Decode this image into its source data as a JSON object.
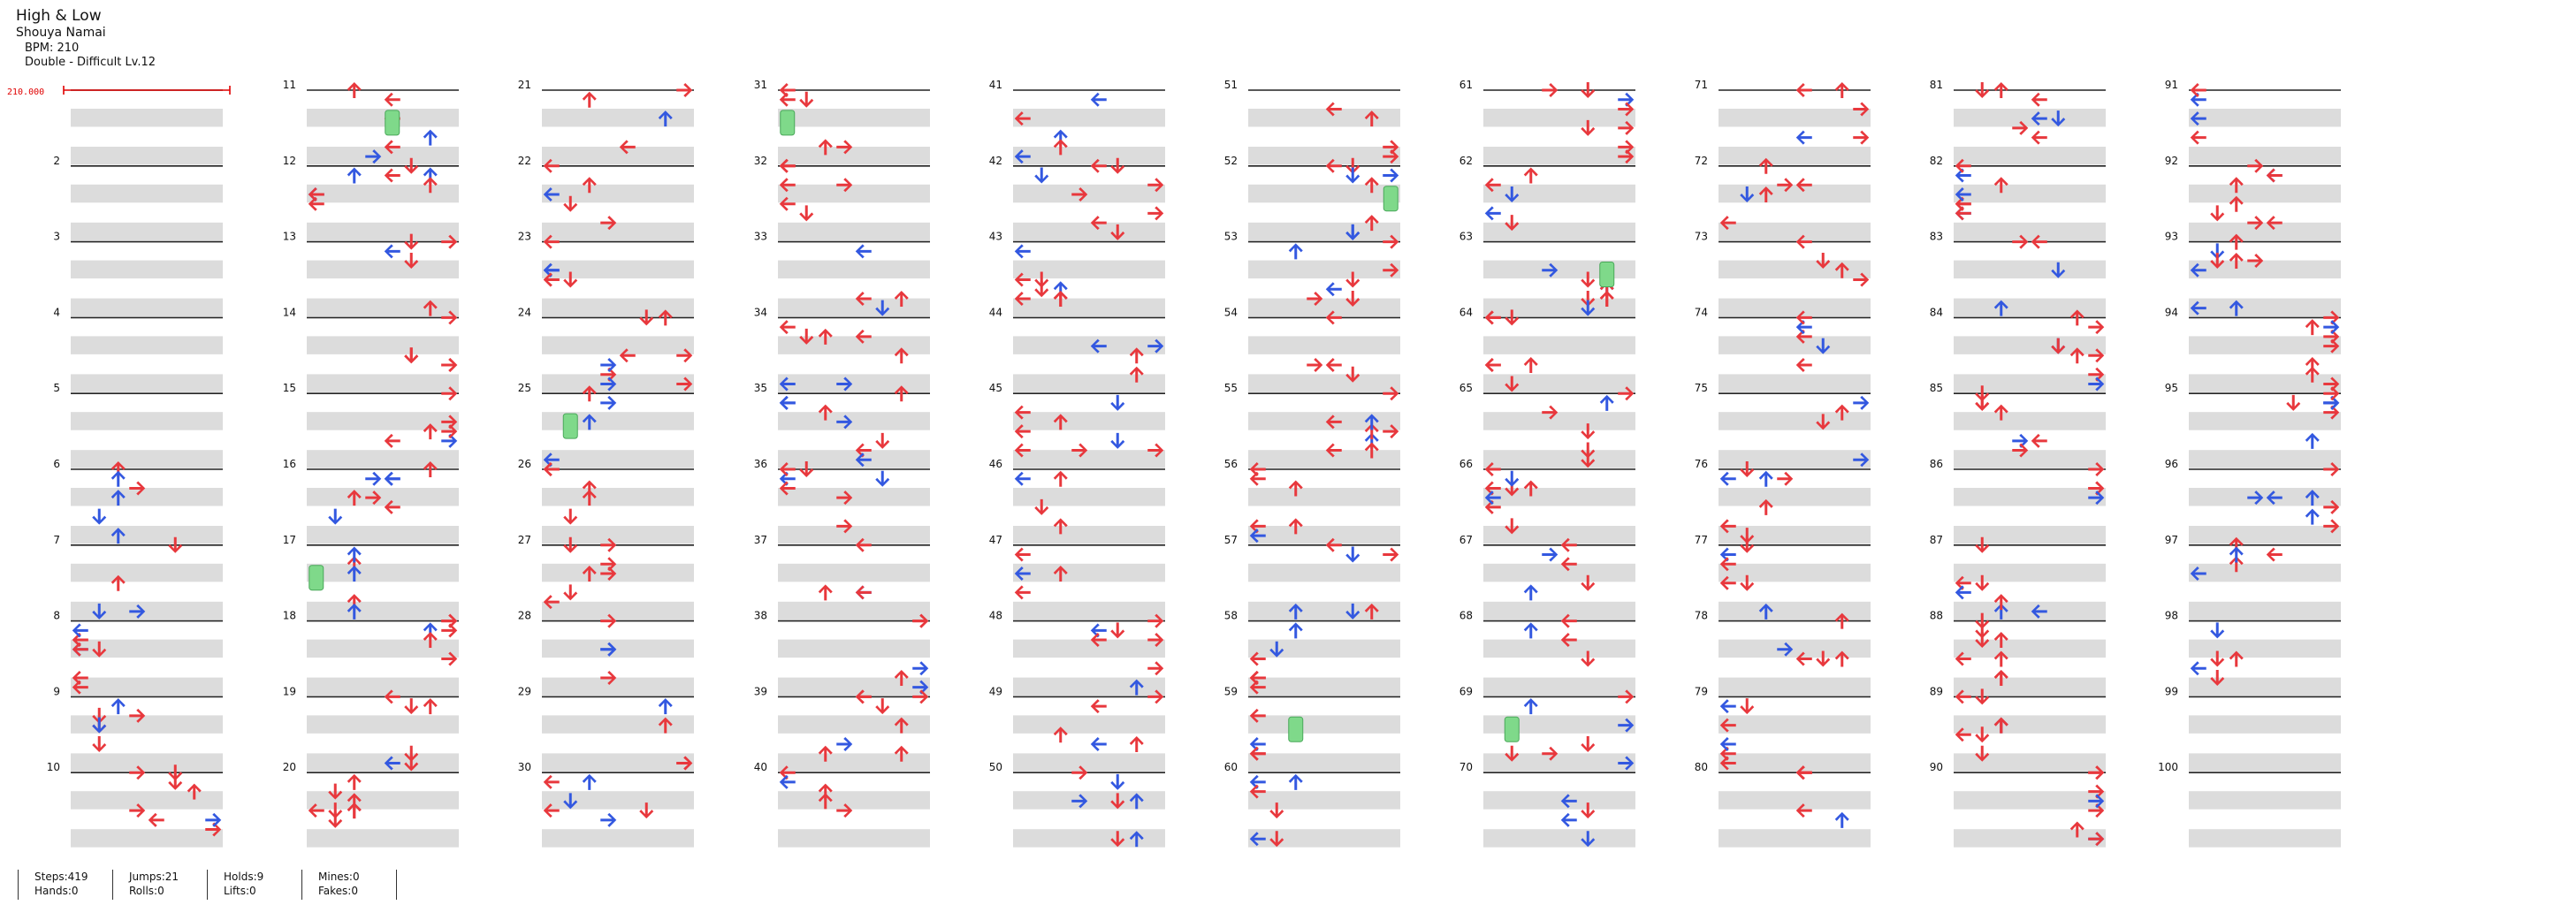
{
  "header": {
    "title": "High & Low",
    "artist": "Shouya Namai",
    "bpm_label": "BPM: 210",
    "difficulty_label": "Double - Difficult  Lv.12"
  },
  "chart": {
    "bpm_marker": "210.000",
    "measure_numbers": [
      "2",
      "3",
      "4",
      "5",
      "6",
      "7",
      "8",
      "9",
      "10",
      "11",
      "12",
      "13",
      "14",
      "15",
      "16",
      "17",
      "18",
      "19",
      "20",
      "21",
      "22",
      "23",
      "24",
      "25",
      "26",
      "27",
      "28",
      "29",
      "30",
      "31",
      "32",
      "33",
      "34",
      "35",
      "36",
      "37",
      "38",
      "39",
      "40",
      "41",
      "42",
      "43",
      "44",
      "45",
      "46",
      "47",
      "48",
      "49",
      "50",
      "51",
      "52",
      "53",
      "54",
      "55",
      "56",
      "57",
      "58",
      "59",
      "60",
      "61",
      "62",
      "63",
      "64",
      "65",
      "66",
      "67",
      "68",
      "69",
      "70",
      "71",
      "72",
      "73",
      "74",
      "75",
      "76",
      "77",
      "78",
      "79",
      "80",
      "81",
      "82",
      "83",
      "84",
      "85",
      "86",
      "87",
      "88",
      "89",
      "90",
      "91",
      "92",
      "93",
      "94",
      "95",
      "96",
      "97",
      "98",
      "99",
      "100"
    ],
    "colors": {
      "quarter": "#e8383d",
      "eighth": "#3358e0",
      "hold": "#7fd98a",
      "band": "#dcdcdc",
      "line": "#222222",
      "marker": "#e00000"
    },
    "notes_shown": "approximate arrow placement per column"
  },
  "stats": [
    {
      "line1": "Steps:419",
      "line2": "Hands:0"
    },
    {
      "line1": "Jumps:21",
      "line2": "Rolls:0"
    },
    {
      "line1": "Holds:9",
      "line2": "Lifts:0"
    },
    {
      "line1": "Mines:0",
      "line2": "Fakes:0"
    }
  ]
}
